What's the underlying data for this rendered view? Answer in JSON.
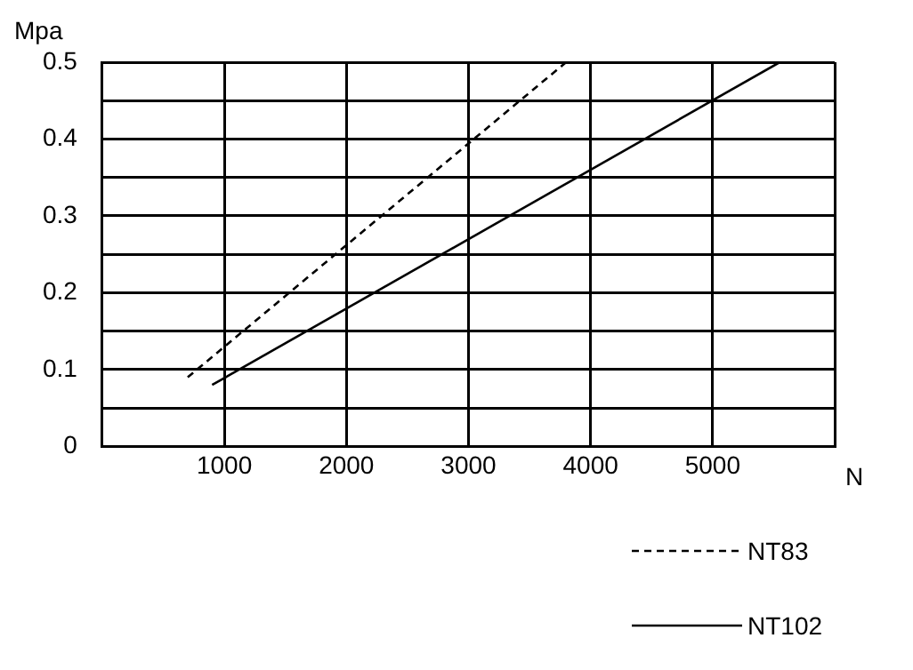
{
  "chart_data": {
    "type": "line",
    "xlabel": "N",
    "ylabel": "Mpa",
    "xlim": [
      0,
      6000
    ],
    "xticks": [
      {
        "value": 0,
        "label": null
      },
      1000,
      2000,
      3000,
      4000,
      5000,
      {
        "value": 6000,
        "label": null
      }
    ],
    "ylim": [
      0,
      0.5
    ],
    "yticks": [
      0,
      {
        "value": 0.05,
        "label": null
      },
      0.1,
      {
        "value": 0.15,
        "label": null
      },
      0.2,
      {
        "value": 0.25,
        "label": null
      },
      0.3,
      {
        "value": 0.35,
        "label": null
      },
      0.4,
      {
        "value": 0.45,
        "label": null
      },
      0.5
    ],
    "grid": true,
    "legend": "bottom right",
    "marker": "none",
    "series": [
      {
        "name": "NT83",
        "color": "#000000",
        "line_style": "dashed",
        "x": [
          700,
          3800
        ],
        "values": [
          0.09,
          0.5
        ]
      },
      {
        "name": "NT102",
        "color": "#000000",
        "line_style": "solid",
        "x": [
          900,
          5550
        ],
        "values": [
          0.08,
          0.5
        ]
      }
    ]
  }
}
